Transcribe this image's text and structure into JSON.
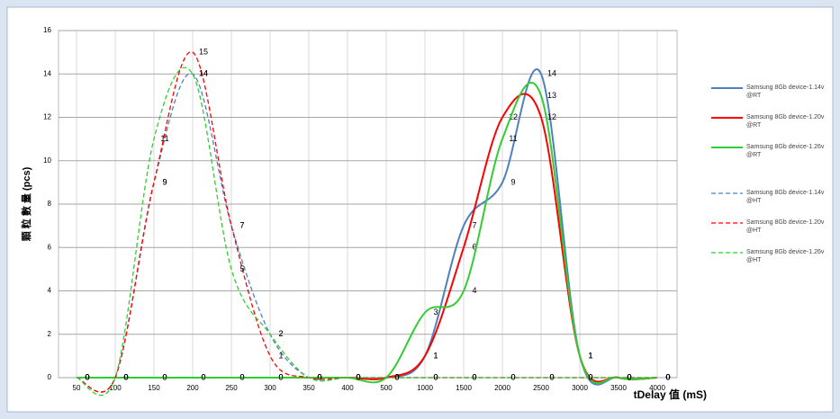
{
  "chart_data": {
    "type": "line",
    "x_label": "tDelay 值 (mS)",
    "y_label": "顆 粒 數 量 (pcs)",
    "categories": [
      "50",
      "100",
      "150",
      "200",
      "250",
      "300",
      "350",
      "400",
      "500",
      "1000",
      "1500",
      "2000",
      "2500",
      "3000",
      "3500",
      "4000"
    ],
    "ylim": [
      0,
      16
    ],
    "yticks": [
      0,
      2,
      4,
      6,
      8,
      10,
      12,
      14,
      16
    ],
    "grid": true,
    "legend": "right",
    "series": [
      {
        "name": "Samsung 8Gb device-1.14v @RT",
        "color": "#4f81bd",
        "line_style": "solid",
        "values": [
          0,
          0,
          0,
          0,
          0,
          0,
          0,
          0,
          0,
          1,
          7,
          9,
          14,
          1,
          0,
          0
        ]
      },
      {
        "name": "Samsung 8Gb device-1.20v @RT",
        "color": "#ff0000",
        "line_style": "solid",
        "values": [
          0,
          0,
          0,
          0,
          0,
          0,
          0,
          0,
          0,
          1,
          6,
          12,
          12,
          1,
          0,
          0
        ]
      },
      {
        "name": "Samsung 8Gb device-1.26v @RT",
        "color": "#33cc33",
        "line_style": "solid",
        "values": [
          0,
          0,
          0,
          0,
          0,
          0,
          0,
          0,
          0,
          3,
          4,
          11,
          13,
          1,
          0,
          0
        ]
      },
      {
        "name": "Samsung 8Gb device-1.14v @HT",
        "color": "#4f81bd",
        "line_style": "dashed",
        "values": [
          0,
          0,
          9,
          14,
          7,
          2,
          0,
          0,
          0,
          0,
          0,
          0,
          0,
          0,
          0,
          0
        ]
      },
      {
        "name": "Samsung 8Gb device-1.20v @HT",
        "color": "#ff0000",
        "line_style": "dashed",
        "values": [
          0,
          0,
          9,
          15,
          7,
          1,
          0,
          0,
          0,
          0,
          0,
          0,
          0,
          0,
          0,
          0
        ]
      },
      {
        "name": "Samsung 8Gb device-1.26v @HT",
        "color": "#33cc33",
        "line_style": "dashed",
        "values": [
          0,
          0,
          11,
          14,
          5,
          2,
          0,
          0,
          0,
          0,
          0,
          0,
          0,
          0,
          0,
          0
        ]
      }
    ]
  }
}
